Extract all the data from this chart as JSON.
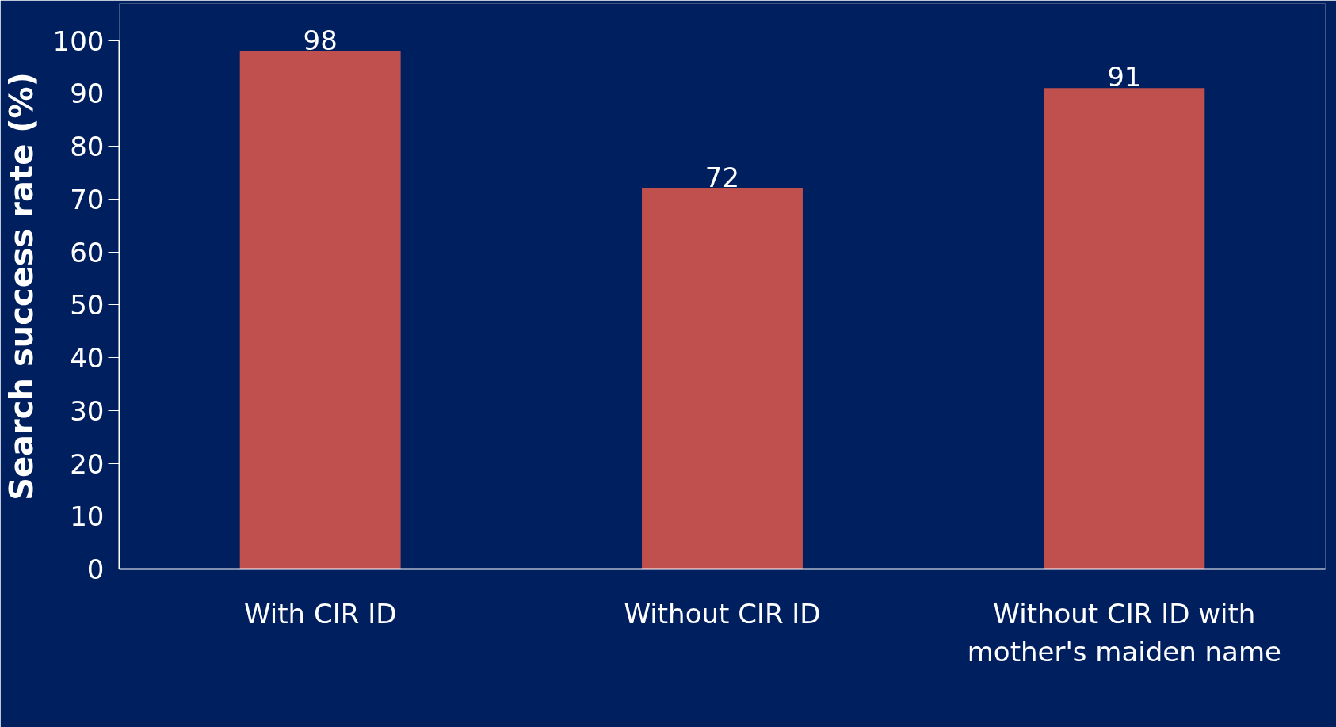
{
  "chart_data": {
    "type": "bar",
    "ylabel": "Search success rate (%)",
    "categories": [
      "With CIR ID",
      "Without CIR ID",
      "Without CIR ID with mother's maiden name"
    ],
    "values": [
      98,
      72,
      91
    ],
    "color": "#c0504d",
    "ylim": [
      0,
      100
    ],
    "yticks": [
      0,
      10,
      20,
      30,
      40,
      50,
      60,
      70,
      80,
      90,
      100
    ],
    "grid": false,
    "data_labels": true
  }
}
